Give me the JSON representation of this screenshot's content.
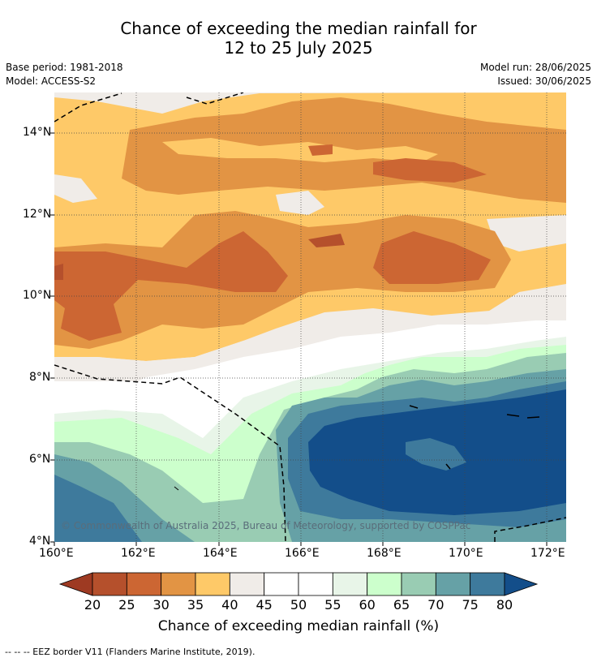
{
  "title_line1": "Chance of exceeding the median rainfall for",
  "title_line2": "12 to 25 July 2025",
  "base_period": "Base period: 1981-2018",
  "model": "Model: ACCESS-S2",
  "model_run": "Model run: 28/06/2025",
  "issued": "Issued: 30/06/2025",
  "copyright": "© Commonwealth of Australia 2025, Bureau of Meteorology, supported by COSPPac",
  "lat_labels": [
    "14°N",
    "12°N",
    "10°N",
    "8°N",
    "6°N",
    "4°N"
  ],
  "lon_labels": [
    "160°E",
    "162°E",
    "164°E",
    "166°E",
    "168°E",
    "170°E",
    "172°E"
  ],
  "colorbar": {
    "title": "Chance of exceeding median rainfall (%)",
    "ticks": [
      "20",
      "25",
      "30",
      "35",
      "40",
      "45",
      "50",
      "55",
      "60",
      "65",
      "70",
      "75",
      "80"
    ],
    "colors": {
      "lt20": "#9e3a22",
      "20-25": "#b5502c",
      "25-30": "#cc6633",
      "30-35": "#e29444",
      "35-40": "#fec968",
      "40-45": "#f0ece8",
      "45-50": "#ffffff",
      "50-55": "#ffffff",
      "55-60": "#e8f5e8",
      "60-65": "#ccffcc",
      "65-70": "#99ccb3",
      "70-75": "#66a1a6",
      "75-80": "#3e7a9c",
      "gt80": "#134e8a"
    }
  },
  "footnote": "--  --  -- EEZ border V11 (Flanders Marine Institute, 2019)."
}
